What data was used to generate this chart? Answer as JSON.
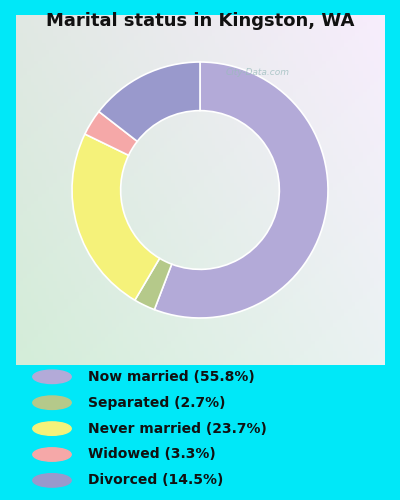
{
  "title": "Marital status in Kingston, WA",
  "title_fontsize": 13,
  "title_fontweight": "bold",
  "slices": [
    {
      "label": "Now married (55.8%)",
      "value": 55.8,
      "color": "#b3aad8"
    },
    {
      "label": "Separated (2.7%)",
      "value": 2.7,
      "color": "#b5c98a"
    },
    {
      "label": "Never married (23.7%)",
      "value": 23.7,
      "color": "#f5f27a"
    },
    {
      "label": "Widowed (3.3%)",
      "value": 3.3,
      "color": "#f5a8a8"
    },
    {
      "label": "Divorced (14.5%)",
      "value": 14.5,
      "color": "#9999cc"
    }
  ],
  "legend_colors": [
    "#b3aad8",
    "#b5c98a",
    "#f5f27a",
    "#f5a8a8",
    "#9999cc"
  ],
  "legend_labels": [
    "Now married (55.8%)",
    "Separated (2.7%)",
    "Never married (23.7%)",
    "Widowed (3.3%)",
    "Divorced (14.5%)"
  ],
  "donut_width": 0.38,
  "background_outer": "#00e8f8",
  "watermark": "City-Data.com",
  "legend_fontsize": 10,
  "start_angle": 90
}
